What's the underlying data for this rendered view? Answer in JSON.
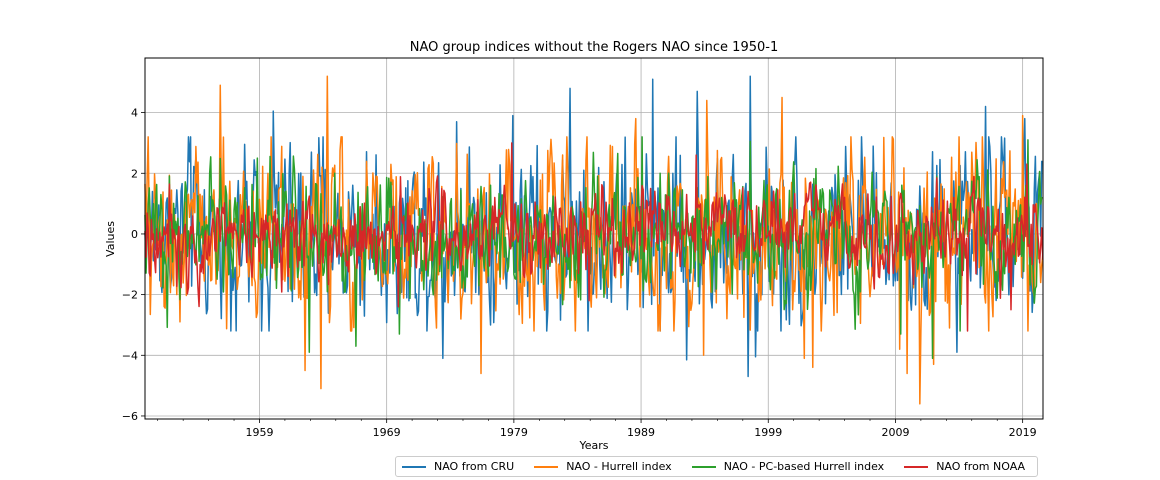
{
  "chart_data": {
    "type": "line",
    "title": "NAO group indices without the Rogers NAO since 1950-1",
    "xlabel": "Years",
    "ylabel": "Values",
    "xlim": [
      1950.0,
      2020.6
    ],
    "ylim": [
      -6.1,
      5.8
    ],
    "xticks": [
      1959,
      1969,
      1979,
      1989,
      1999,
      2009,
      2019
    ],
    "yticks": [
      -6,
      -4,
      -2,
      0,
      2,
      4
    ],
    "grid": true,
    "legend_placement": "below plot, centered",
    "series": [
      {
        "name": "NAO from CRU",
        "color": "#1f77b4",
        "start_year": 1950.0,
        "end_year": 2020.5,
        "amplitude": 2.5,
        "peaks": [
          [
            1953.6,
            3.2
          ],
          [
            1960.1,
            4.05
          ],
          [
            1974.5,
            3.7
          ],
          [
            1978.9,
            3.9
          ],
          [
            1983.4,
            4.8
          ],
          [
            1989.9,
            5.1
          ],
          [
            1993.4,
            4.7
          ],
          [
            1997.6,
            5.2
          ],
          [
            2016.1,
            4.2
          ],
          [
            2019.2,
            3.8
          ],
          [
            1973.4,
            -4.1
          ],
          [
            1992.6,
            -4.15
          ],
          [
            1997.4,
            -4.7
          ],
          [
            1998.0,
            -4.05
          ],
          [
            2013.8,
            -3.9
          ]
        ]
      },
      {
        "name": "NAO - Hurrell index",
        "color": "#ff7f0e",
        "start_year": 1950.0,
        "end_year": 2020.6,
        "amplitude": 2.5,
        "peaks": [
          [
            1955.9,
            4.9
          ],
          [
            1964.3,
            5.2
          ],
          [
            1988.6,
            3.8
          ],
          [
            1994.2,
            4.4
          ],
          [
            2000.1,
            4.5
          ],
          [
            2019.0,
            3.9
          ],
          [
            1962.6,
            -4.5
          ],
          [
            1963.8,
            -5.1
          ],
          [
            1976.4,
            -4.6
          ],
          [
            1993.9,
            -4.0
          ],
          [
            2001.8,
            -4.1
          ],
          [
            2002.5,
            -4.4
          ],
          [
            2009.3,
            -3.8
          ],
          [
            2009.9,
            -4.6
          ],
          [
            2010.9,
            -5.6
          ],
          [
            2012.0,
            -4.3
          ]
        ]
      },
      {
        "name": "NAO - PC-based Hurrell index",
        "color": "#2ca02c",
        "start_year": 1950.0,
        "end_year": 2020.5,
        "amplitude": 1.7,
        "peaks": [
          [
            1958.8,
            2.5
          ],
          [
            1989.1,
            3.2
          ],
          [
            1997.6,
            3.05
          ],
          [
            2019.4,
            3.1
          ],
          [
            1962.9,
            -3.9
          ],
          [
            1966.6,
            -3.7
          ],
          [
            1970.0,
            -3.3
          ],
          [
            2009.4,
            -3.3
          ],
          [
            2011.9,
            -4.1
          ],
          [
            2014.1,
            -3.2
          ]
        ]
      },
      {
        "name": "NAO from NOAA",
        "color": "#d62728",
        "start_year": 1950.0,
        "end_year": 2020.6,
        "amplitude": 1.25,
        "peaks": [
          [
            1978.8,
            3.0
          ],
          [
            1993.3,
            2.6
          ],
          [
            2019.3,
            2.3
          ],
          [
            1969.9,
            -2.4
          ],
          [
            1984.9,
            -2.2
          ],
          [
            2014.7,
            -3.2
          ],
          [
            2018.1,
            -2.5
          ]
        ]
      }
    ]
  }
}
